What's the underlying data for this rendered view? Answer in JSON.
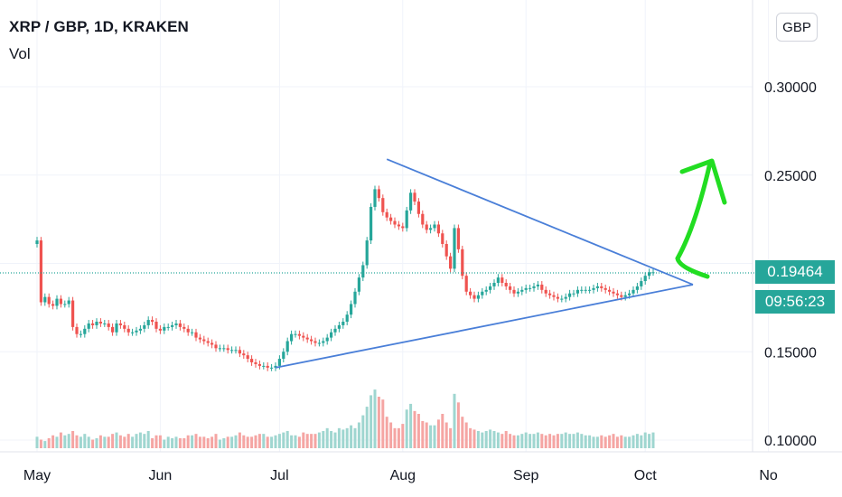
{
  "header": {
    "symbol_line": "XRP / GBP, 1D, KRAKEN",
    "volume_label": "Vol",
    "currency_button": "GBP"
  },
  "price_tag": {
    "last_price": "0.19464",
    "countdown": "09:56:23"
  },
  "colors": {
    "up": "#26a69a",
    "down": "#ef5350",
    "up_volume": "#9fd6d0",
    "down_volume": "#f5a5a3",
    "trendline": "#4a7fd8",
    "arrow": "#22dd22",
    "grid": "#f0f3fa"
  },
  "chart_data": {
    "type": "candlestick",
    "title": "XRP / GBP, 1D, KRAKEN",
    "y_ticks": [
      "0.30000",
      "0.25000",
      "0.15000",
      "0.10000"
    ],
    "y_tick_values": [
      0.3,
      0.25,
      0.15,
      0.1
    ],
    "ylim": [
      0.093,
      0.318
    ],
    "x_month_labels": [
      "May",
      "Jun",
      "Jul",
      "Aug",
      "Sep",
      "Oct",
      "No"
    ],
    "x_month_days": [
      0,
      31,
      61,
      92,
      123,
      153,
      184
    ],
    "x_range_days": [
      0,
      184
    ],
    "last_price_value": 0.19464,
    "grid": true,
    "close_series_by_day": [
      [
        0,
        0.213
      ],
      [
        1,
        0.178
      ],
      [
        2,
        0.181
      ],
      [
        3,
        0.177
      ],
      [
        4,
        0.176
      ],
      [
        5,
        0.18
      ],
      [
        6,
        0.177
      ],
      [
        7,
        0.177
      ],
      [
        8,
        0.179
      ],
      [
        9,
        0.164
      ],
      [
        10,
        0.16
      ],
      [
        11,
        0.16
      ],
      [
        12,
        0.163
      ],
      [
        13,
        0.166
      ],
      [
        14,
        0.165
      ],
      [
        15,
        0.167
      ],
      [
        16,
        0.166
      ],
      [
        17,
        0.166
      ],
      [
        18,
        0.164
      ],
      [
        19,
        0.161
      ],
      [
        20,
        0.166
      ],
      [
        21,
        0.165
      ],
      [
        22,
        0.163
      ],
      [
        23,
        0.161
      ],
      [
        24,
        0.161
      ],
      [
        25,
        0.162
      ],
      [
        26,
        0.163
      ],
      [
        27,
        0.165
      ],
      [
        28,
        0.168
      ],
      [
        29,
        0.167
      ],
      [
        30,
        0.163
      ],
      [
        31,
        0.162
      ],
      [
        32,
        0.164
      ],
      [
        33,
        0.164
      ],
      [
        34,
        0.165
      ],
      [
        35,
        0.166
      ],
      [
        36,
        0.164
      ],
      [
        37,
        0.163
      ],
      [
        38,
        0.161
      ],
      [
        39,
        0.161
      ],
      [
        40,
        0.158
      ],
      [
        41,
        0.157
      ],
      [
        42,
        0.156
      ],
      [
        43,
        0.155
      ],
      [
        44,
        0.154
      ],
      [
        45,
        0.152
      ],
      [
        46,
        0.152
      ],
      [
        47,
        0.152
      ],
      [
        48,
        0.151
      ],
      [
        49,
        0.151
      ],
      [
        50,
        0.151
      ],
      [
        51,
        0.149
      ],
      [
        52,
        0.148
      ],
      [
        53,
        0.146
      ],
      [
        54,
        0.144
      ],
      [
        55,
        0.143
      ],
      [
        56,
        0.142
      ],
      [
        57,
        0.142
      ],
      [
        58,
        0.141
      ],
      [
        59,
        0.141
      ],
      [
        60,
        0.142
      ],
      [
        61,
        0.146
      ],
      [
        62,
        0.15
      ],
      [
        63,
        0.156
      ],
      [
        64,
        0.16
      ],
      [
        65,
        0.16
      ],
      [
        66,
        0.159
      ],
      [
        67,
        0.158
      ],
      [
        68,
        0.157
      ],
      [
        69,
        0.156
      ],
      [
        70,
        0.155
      ],
      [
        71,
        0.155
      ],
      [
        72,
        0.156
      ],
      [
        73,
        0.158
      ],
      [
        74,
        0.161
      ],
      [
        75,
        0.163
      ],
      [
        76,
        0.165
      ],
      [
        77,
        0.167
      ],
      [
        78,
        0.171
      ],
      [
        79,
        0.177
      ],
      [
        80,
        0.184
      ],
      [
        81,
        0.192
      ],
      [
        82,
        0.199
      ],
      [
        83,
        0.213
      ],
      [
        84,
        0.232
      ],
      [
        85,
        0.242
      ],
      [
        86,
        0.237
      ],
      [
        87,
        0.229
      ],
      [
        88,
        0.226
      ],
      [
        89,
        0.224
      ],
      [
        90,
        0.222
      ],
      [
        91,
        0.221
      ],
      [
        92,
        0.22
      ],
      [
        93,
        0.23
      ],
      [
        94,
        0.24
      ],
      [
        95,
        0.235
      ],
      [
        96,
        0.228
      ],
      [
        97,
        0.222
      ],
      [
        98,
        0.219
      ],
      [
        99,
        0.22
      ],
      [
        100,
        0.222
      ],
      [
        101,
        0.217
      ],
      [
        102,
        0.211
      ],
      [
        103,
        0.204
      ],
      [
        104,
        0.197
      ],
      [
        105,
        0.22
      ],
      [
        106,
        0.208
      ],
      [
        107,
        0.193
      ],
      [
        108,
        0.184
      ],
      [
        109,
        0.182
      ],
      [
        110,
        0.18
      ],
      [
        111,
        0.182
      ],
      [
        112,
        0.184
      ],
      [
        113,
        0.185
      ],
      [
        114,
        0.187
      ],
      [
        115,
        0.189
      ],
      [
        116,
        0.192
      ],
      [
        117,
        0.189
      ],
      [
        118,
        0.187
      ],
      [
        119,
        0.185
      ],
      [
        120,
        0.183
      ],
      [
        121,
        0.184
      ],
      [
        122,
        0.185
      ],
      [
        123,
        0.186
      ],
      [
        124,
        0.186
      ],
      [
        125,
        0.187
      ],
      [
        126,
        0.188
      ],
      [
        127,
        0.185
      ],
      [
        128,
        0.183
      ],
      [
        129,
        0.182
      ],
      [
        130,
        0.181
      ],
      [
        131,
        0.18
      ],
      [
        132,
        0.18
      ],
      [
        133,
        0.181
      ],
      [
        134,
        0.183
      ],
      [
        135,
        0.183
      ],
      [
        136,
        0.185
      ],
      [
        137,
        0.185
      ],
      [
        138,
        0.185
      ],
      [
        139,
        0.185
      ],
      [
        140,
        0.186
      ],
      [
        141,
        0.187
      ],
      [
        142,
        0.186
      ],
      [
        143,
        0.185
      ],
      [
        144,
        0.184
      ],
      [
        145,
        0.183
      ],
      [
        146,
        0.182
      ],
      [
        147,
        0.181
      ],
      [
        148,
        0.182
      ],
      [
        149,
        0.183
      ],
      [
        150,
        0.185
      ],
      [
        151,
        0.187
      ],
      [
        152,
        0.19
      ],
      [
        153,
        0.193
      ],
      [
        154,
        0.195
      ],
      [
        155,
        0.195
      ]
    ],
    "volume_series_by_day": [
      [
        0,
        8
      ],
      [
        1,
        6
      ],
      [
        2,
        5
      ],
      [
        3,
        7
      ],
      [
        4,
        9
      ],
      [
        5,
        8
      ],
      [
        6,
        11
      ],
      [
        7,
        9
      ],
      [
        8,
        10
      ],
      [
        9,
        12
      ],
      [
        10,
        9
      ],
      [
        11,
        8
      ],
      [
        12,
        10
      ],
      [
        13,
        8
      ],
      [
        14,
        6
      ],
      [
        15,
        7
      ],
      [
        16,
        9
      ],
      [
        17,
        8
      ],
      [
        18,
        8
      ],
      [
        19,
        10
      ],
      [
        20,
        11
      ],
      [
        21,
        9
      ],
      [
        22,
        8
      ],
      [
        23,
        10
      ],
      [
        24,
        8
      ],
      [
        25,
        10
      ],
      [
        26,
        11
      ],
      [
        27,
        10
      ],
      [
        28,
        12
      ],
      [
        29,
        7
      ],
      [
        30,
        9
      ],
      [
        31,
        9
      ],
      [
        32,
        6
      ],
      [
        33,
        8
      ],
      [
        34,
        7
      ],
      [
        35,
        8
      ],
      [
        36,
        7
      ],
      [
        37,
        7
      ],
      [
        38,
        9
      ],
      [
        39,
        9
      ],
      [
        40,
        10
      ],
      [
        41,
        8
      ],
      [
        42,
        8
      ],
      [
        43,
        7
      ],
      [
        44,
        8
      ],
      [
        45,
        10
      ],
      [
        46,
        6
      ],
      [
        47,
        7
      ],
      [
        48,
        8
      ],
      [
        49,
        8
      ],
      [
        50,
        9
      ],
      [
        51,
        11
      ],
      [
        52,
        9
      ],
      [
        53,
        8
      ],
      [
        54,
        8
      ],
      [
        55,
        9
      ],
      [
        56,
        10
      ],
      [
        57,
        10
      ],
      [
        58,
        8
      ],
      [
        59,
        8
      ],
      [
        60,
        9
      ],
      [
        61,
        10
      ],
      [
        62,
        11
      ],
      [
        63,
        12
      ],
      [
        64,
        9
      ],
      [
        65,
        9
      ],
      [
        66,
        8
      ],
      [
        67,
        11
      ],
      [
        68,
        10
      ],
      [
        69,
        10
      ],
      [
        70,
        10
      ],
      [
        71,
        11
      ],
      [
        72,
        12
      ],
      [
        73,
        14
      ],
      [
        74,
        12
      ],
      [
        75,
        11
      ],
      [
        76,
        14
      ],
      [
        77,
        13
      ],
      [
        78,
        14
      ],
      [
        79,
        16
      ],
      [
        80,
        14
      ],
      [
        81,
        18
      ],
      [
        82,
        23
      ],
      [
        83,
        29
      ],
      [
        84,
        37
      ],
      [
        85,
        41
      ],
      [
        86,
        36
      ],
      [
        87,
        34
      ],
      [
        88,
        22
      ],
      [
        89,
        18
      ],
      [
        90,
        14
      ],
      [
        91,
        14
      ],
      [
        92,
        17
      ],
      [
        93,
        27
      ],
      [
        94,
        31
      ],
      [
        95,
        26
      ],
      [
        96,
        24
      ],
      [
        97,
        19
      ],
      [
        98,
        18
      ],
      [
        99,
        16
      ],
      [
        100,
        16
      ],
      [
        101,
        20
      ],
      [
        102,
        24
      ],
      [
        103,
        18
      ],
      [
        104,
        14
      ],
      [
        105,
        38
      ],
      [
        106,
        32
      ],
      [
        107,
        22
      ],
      [
        108,
        18
      ],
      [
        109,
        14
      ],
      [
        110,
        13
      ],
      [
        111,
        12
      ],
      [
        112,
        11
      ],
      [
        113,
        12
      ],
      [
        114,
        13
      ],
      [
        115,
        12
      ],
      [
        116,
        11
      ],
      [
        117,
        10
      ],
      [
        118,
        12
      ],
      [
        119,
        10
      ],
      [
        120,
        9
      ],
      [
        121,
        9
      ],
      [
        122,
        10
      ],
      [
        123,
        11
      ],
      [
        124,
        10
      ],
      [
        125,
        10
      ],
      [
        126,
        11
      ],
      [
        127,
        10
      ],
      [
        128,
        9
      ],
      [
        129,
        10
      ],
      [
        130,
        9
      ],
      [
        131,
        10
      ],
      [
        132,
        10
      ],
      [
        133,
        11
      ],
      [
        134,
        10
      ],
      [
        135,
        10
      ],
      [
        136,
        11
      ],
      [
        137,
        10
      ],
      [
        138,
        9
      ],
      [
        139,
        9
      ],
      [
        140,
        8
      ],
      [
        141,
        8
      ],
      [
        142,
        9
      ],
      [
        143,
        8
      ],
      [
        144,
        9
      ],
      [
        145,
        10
      ],
      [
        146,
        8
      ],
      [
        147,
        9
      ],
      [
        148,
        8
      ],
      [
        149,
        8
      ],
      [
        150,
        9
      ],
      [
        151,
        10
      ],
      [
        152,
        9
      ],
      [
        153,
        11
      ],
      [
        154,
        10
      ],
      [
        155,
        11
      ]
    ],
    "volume_max": 60,
    "annotations": {
      "triangle_upper_line": [
        [
          88,
          0.259
        ],
        [
          165,
          0.188
        ]
      ],
      "triangle_lower_line": [
        [
          60,
          0.141
        ],
        [
          165,
          0.188
        ]
      ],
      "arrow": "green hand-drawn arrow pointing up-right near the triangle apex"
    }
  }
}
